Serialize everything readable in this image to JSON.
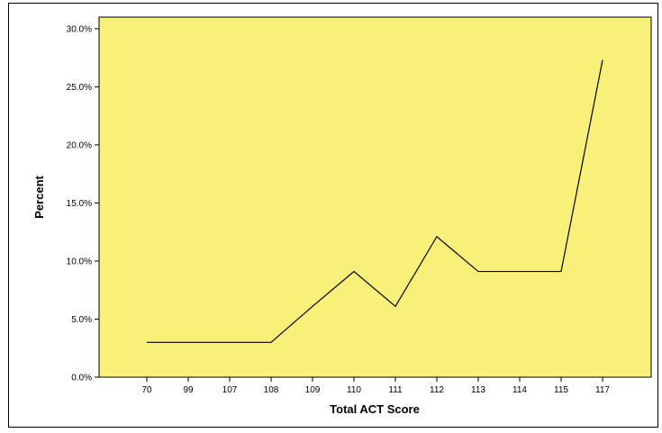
{
  "chart_data": {
    "type": "line",
    "title": "",
    "xlabel": "Total ACT Score",
    "ylabel": "Percent",
    "categories": [
      "70",
      "99",
      "107",
      "108",
      "109",
      "110",
      "111",
      "112",
      "113",
      "114",
      "115",
      "117"
    ],
    "series": [
      {
        "values": [
          3.0,
          3.0,
          3.0,
          3.0,
          6.1,
          9.1,
          6.1,
          12.1,
          9.1,
          9.1,
          9.1,
          27.3
        ]
      }
    ],
    "ylim": [
      0,
      31
    ],
    "yticks": [
      0,
      5,
      10,
      15,
      20,
      25,
      30
    ],
    "ytick_labels": [
      "0.0%",
      "5.0%",
      "10.0%",
      "15.0%",
      "20.0%",
      "25.0%",
      "30.0%"
    ],
    "grid": false,
    "colors": {
      "plot_background": "#f9f07a",
      "line": "#000000"
    }
  }
}
